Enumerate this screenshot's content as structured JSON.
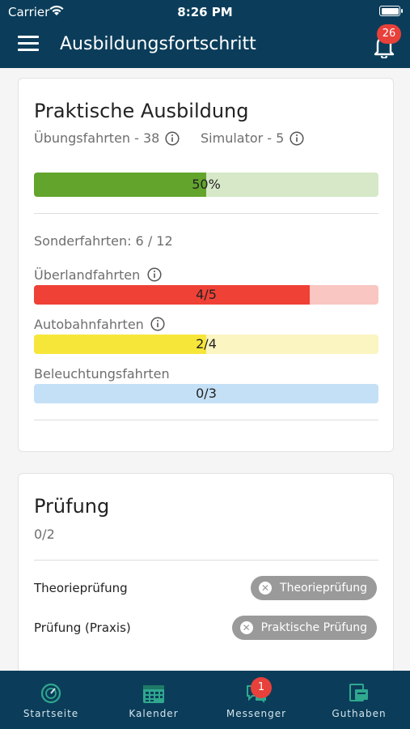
{
  "status_bar": {
    "carrier": "Carrier",
    "time": "8:26 PM"
  },
  "header": {
    "title": "Ausbildungsfortschritt",
    "notification_count": "26"
  },
  "practical": {
    "title": "Praktische Ausbildung",
    "practice_drives": "Übungsfahrten - 38",
    "simulator": "Simulator - 5",
    "overall": {
      "label": "50%",
      "fraction": 0.5,
      "fill_color": "#62a42c",
      "track_color": "#d6e8c7"
    },
    "special_drives": "Sonderfahrten: 6 / 12",
    "items": [
      {
        "name": "Überlandfahrten",
        "progress": "4/5",
        "fraction": 0.8,
        "fill_color": "#ef4136",
        "track_color": "#f9c6c2"
      },
      {
        "name": "Autobahnfahrten",
        "progress": "2/4",
        "fraction": 0.5,
        "fill_color": "#f7e63a",
        "track_color": "#fbf5c2"
      },
      {
        "name": "Beleuchtungsfahrten",
        "progress": "0/3",
        "fraction": 0.0,
        "fill_color": "#5aa8e0",
        "track_color": "#c4e0f6"
      }
    ]
  },
  "exam": {
    "title": "Prüfung",
    "count": "0/2",
    "rows": [
      {
        "label": "Theorieprüfung",
        "chip": "Theorieprüfung"
      },
      {
        "label": "Prüfung (Praxis)",
        "chip": "Praktische Prüfung"
      }
    ]
  },
  "tabbar": {
    "tabs": [
      {
        "label": "Startseite",
        "icon": "dashboard-icon"
      },
      {
        "label": "Kalender",
        "icon": "calendar-icon"
      },
      {
        "label": "Messenger",
        "icon": "chat-icon",
        "badge": "1"
      },
      {
        "label": "Guthaben",
        "icon": "wallet-icon"
      }
    ]
  },
  "colors": {
    "header_bg": "#0b3d5a",
    "badge": "#e8403a",
    "chip": "#9a9a9a"
  }
}
